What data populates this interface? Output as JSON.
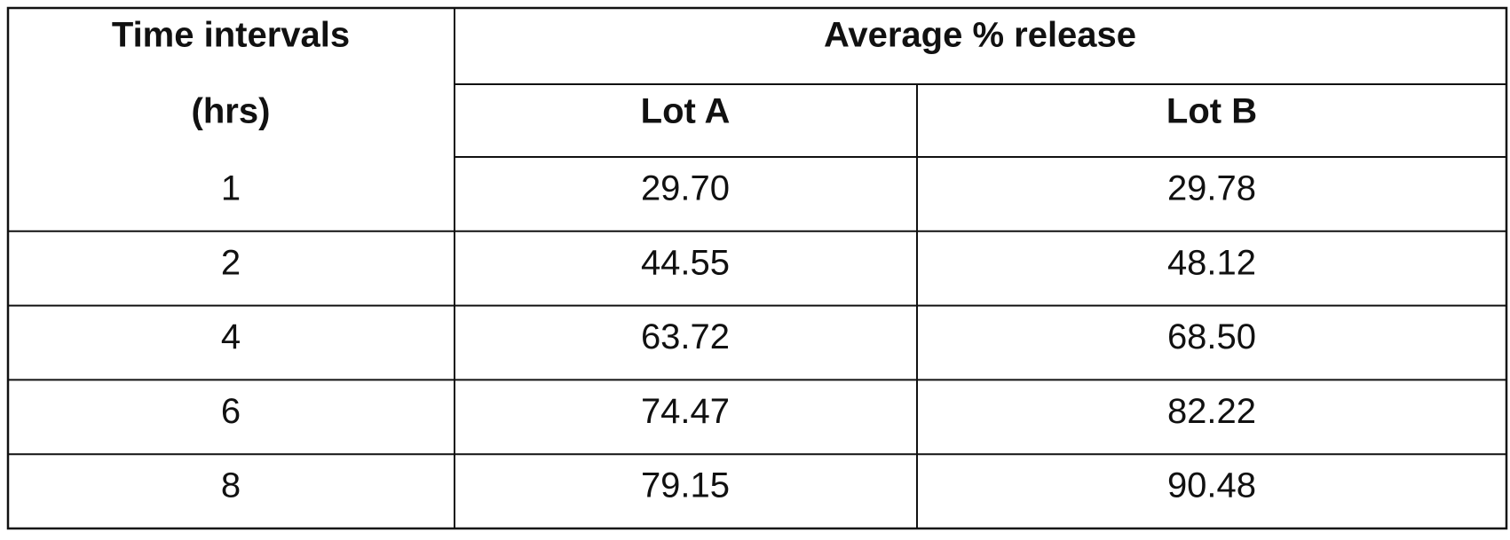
{
  "table": {
    "header": {
      "first_column": [
        "Time intervals",
        "(hrs)"
      ],
      "group": "Average % release",
      "columns": [
        "Lot A",
        "Lot B"
      ]
    },
    "rows": [
      [
        "1",
        "29.70",
        "29.78"
      ],
      [
        "2",
        "44.55",
        "48.12"
      ],
      [
        "4",
        "63.72",
        "68.50"
      ],
      [
        "6",
        "74.47",
        "82.22"
      ],
      [
        "8",
        "79.15",
        "90.48"
      ]
    ]
  }
}
